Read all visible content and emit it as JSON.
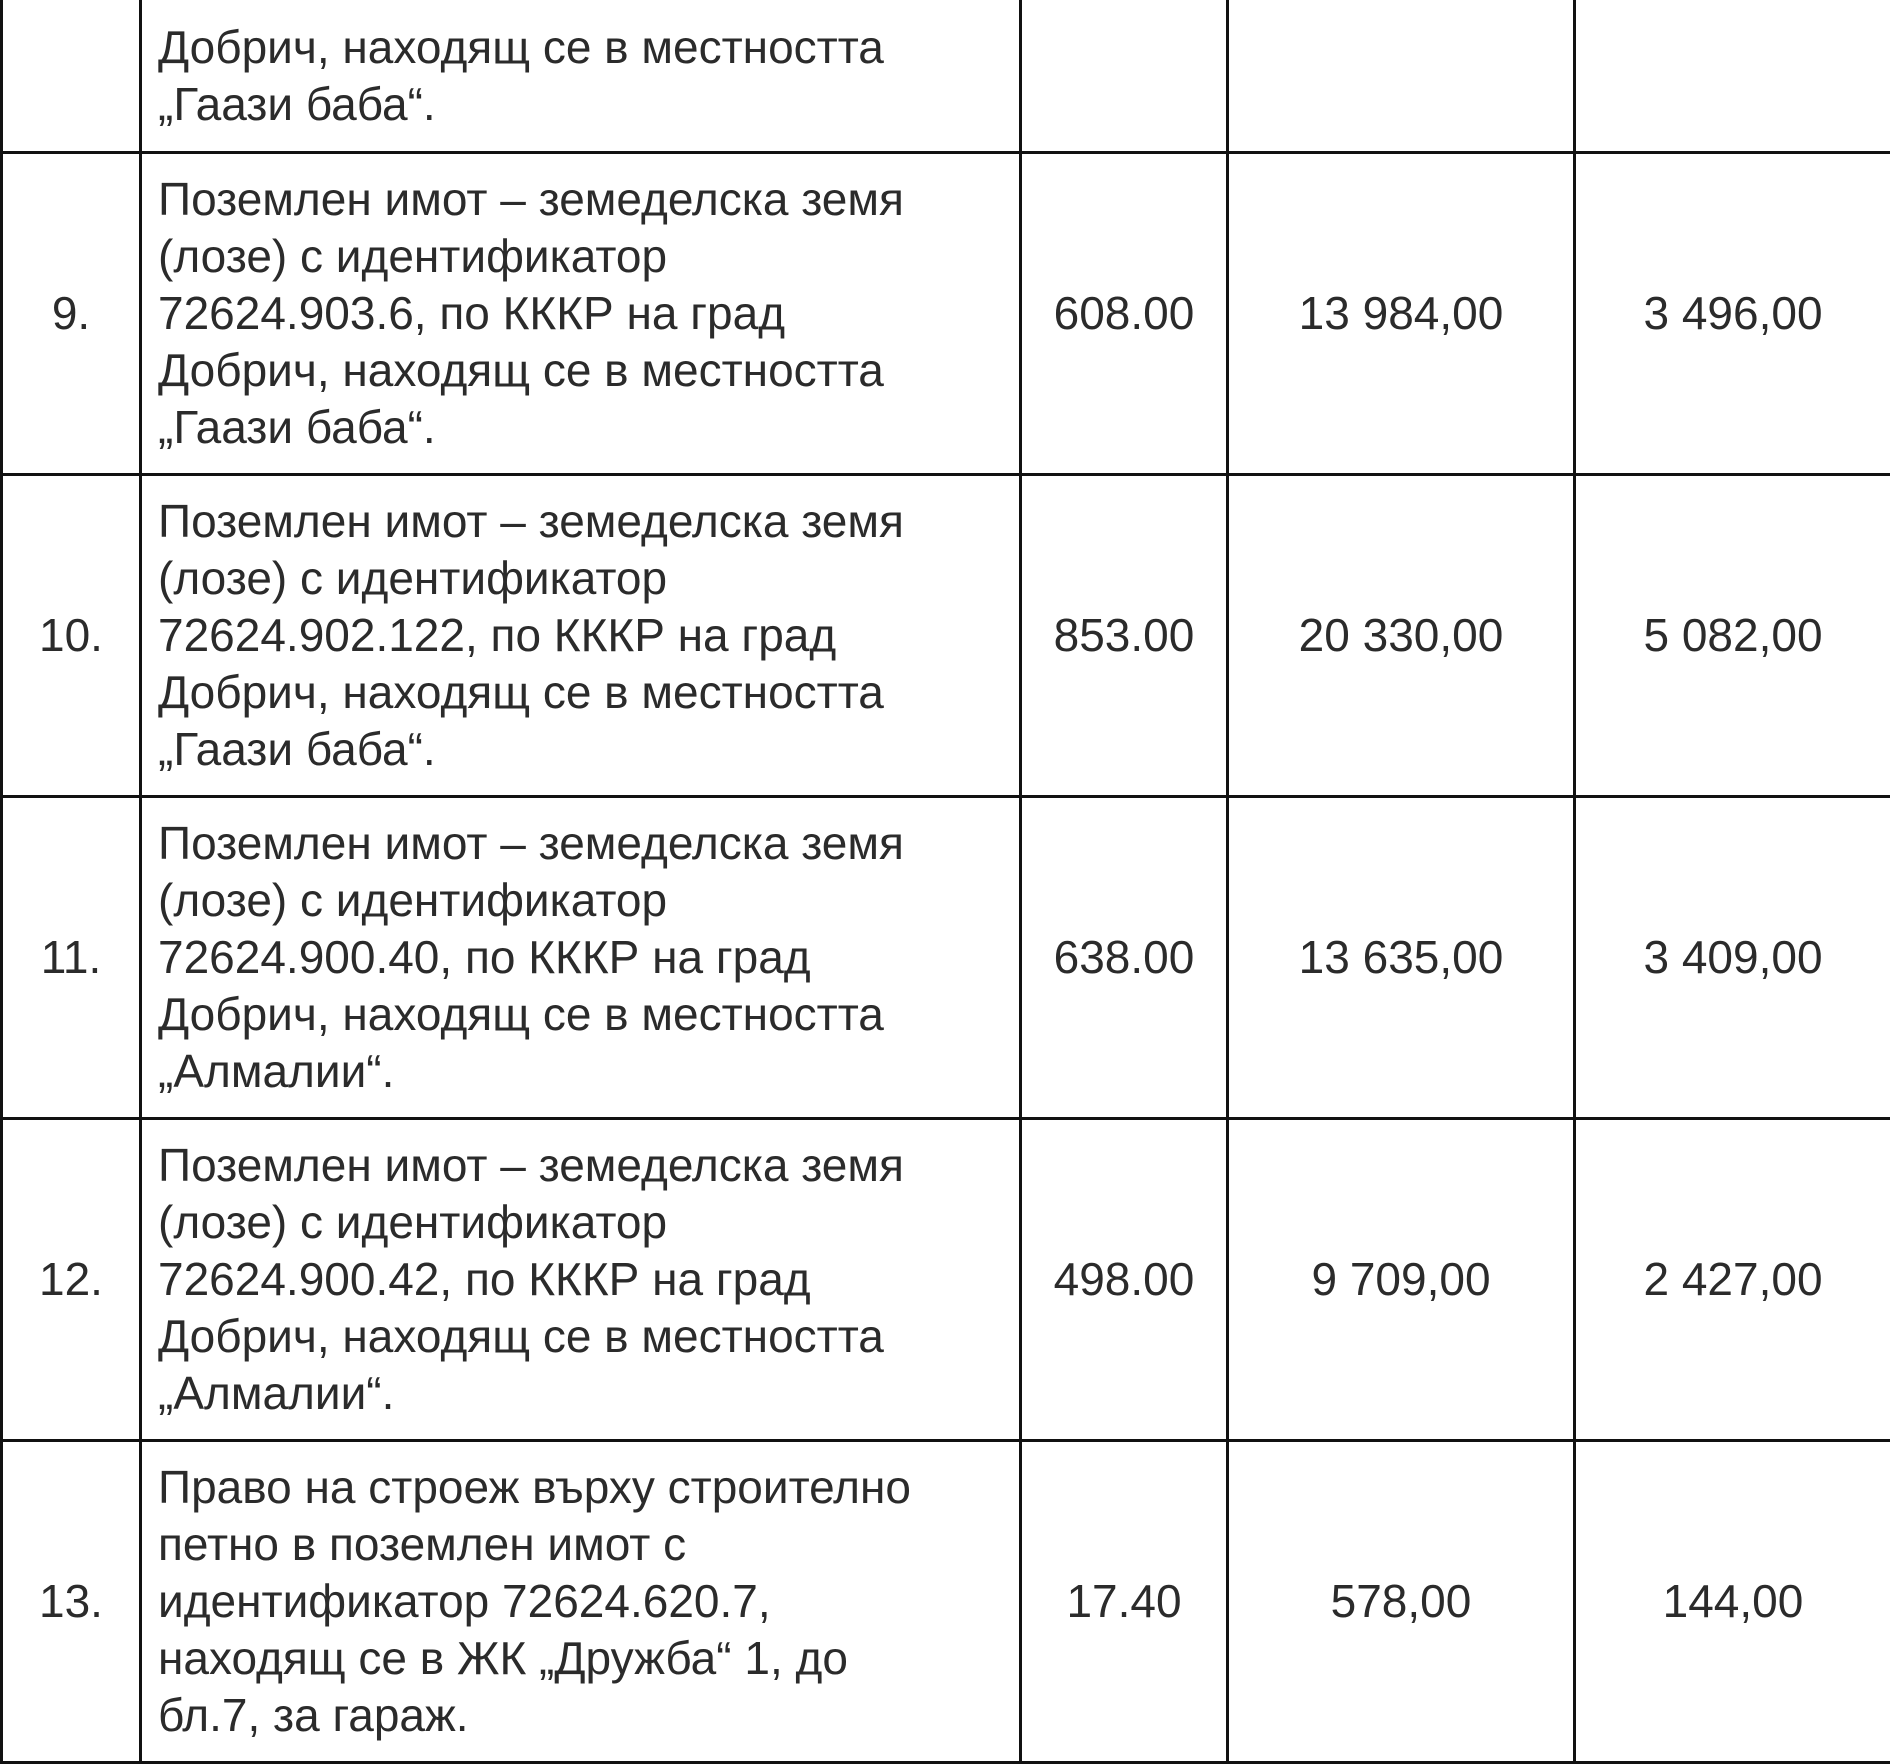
{
  "rows": [
    {
      "no": "",
      "description": "Добрич, находящ се в местността\n„Гаази баба“.",
      "area": "",
      "value1": "",
      "value2": ""
    },
    {
      "no": "9.",
      "description": "Поземлен имот – земеделска земя\n(лозе) с идентификатор\n72624.903.6, по КККР на град\nДобрич, находящ се в местността\n„Гаази баба“.",
      "area": "608.00",
      "value1": "13 984,00",
      "value2": "3 496,00"
    },
    {
      "no": "10.",
      "description": "Поземлен имот – земеделска земя\n(лозе) с идентификатор\n72624.902.122, по КККР на град\nДобрич, находящ се в местността\n„Гаази баба“.",
      "area": "853.00",
      "value1": "20 330,00",
      "value2": "5 082,00"
    },
    {
      "no": "11.",
      "description": "Поземлен имот – земеделска земя\n(лозе) с идентификатор\n72624.900.40, по КККР на град\nДобрич, находящ се в местността\n„Алмалии“.",
      "area": "638.00",
      "value1": "13 635,00",
      "value2": "3 409,00"
    },
    {
      "no": "12.",
      "description": "Поземлен имот – земеделска земя\n(лозе) с идентификатор\n72624.900.42, по КККР на град\nДобрич, находящ се в местността\n„Алмалии“.",
      "area": "498.00",
      "value1": "9 709,00",
      "value2": "2 427,00"
    },
    {
      "no": "13.",
      "description": "Право на строеж върху строително\nпетно в поземлен имот с\nидентификатор 72624.620.7,\nнаходящ се в ЖК „Дружба“ 1, до\nбл.7, за гараж.",
      "area": "17.40",
      "value1": "578,00",
      "value2": "144,00"
    }
  ]
}
